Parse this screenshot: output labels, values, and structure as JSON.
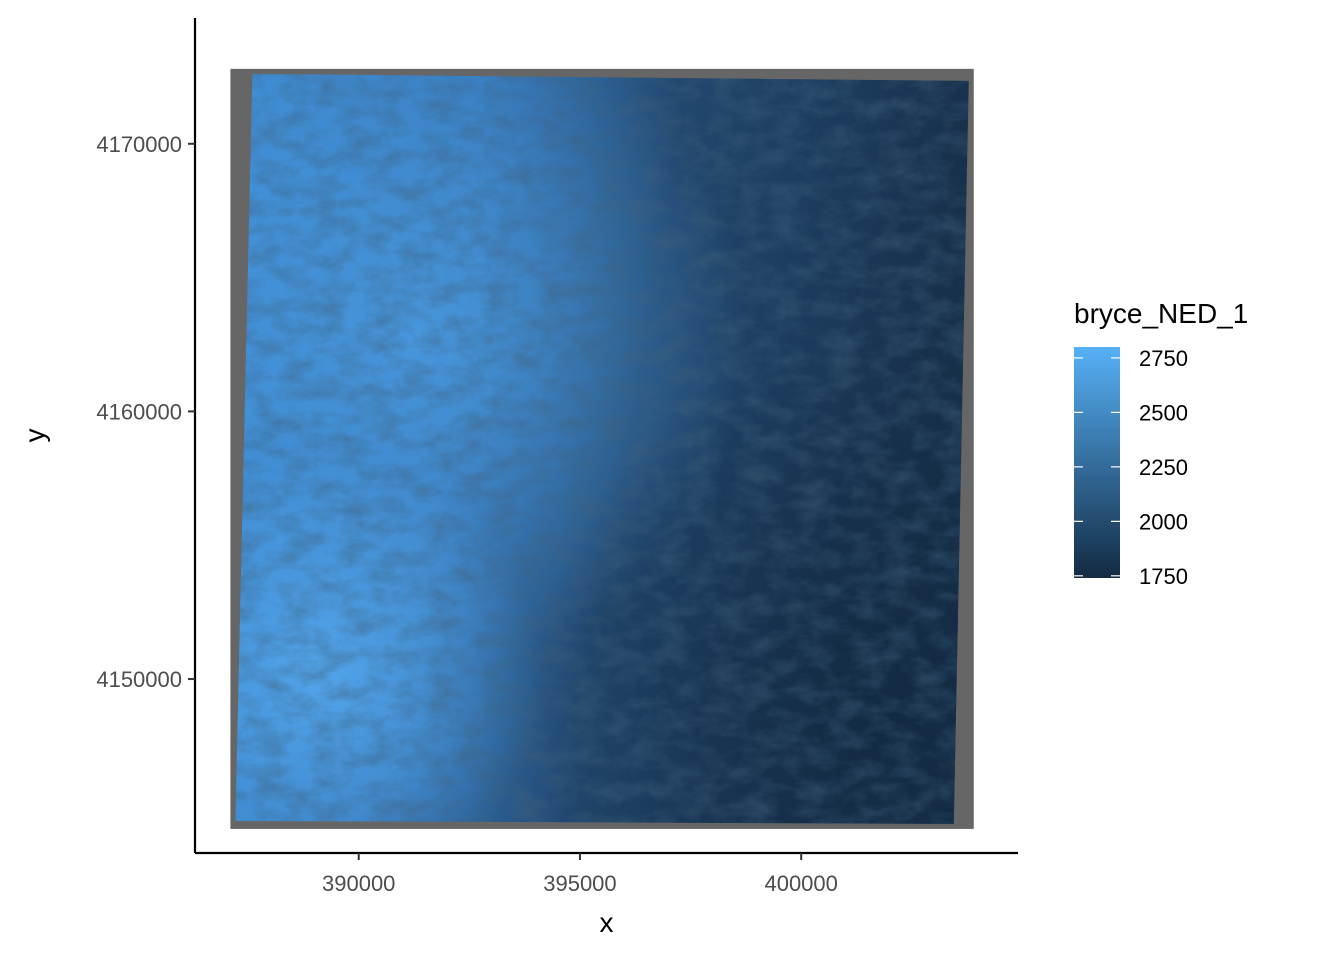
{
  "chart_data": {
    "type": "heatmap",
    "title": "",
    "xlabel": "x",
    "ylabel": "y",
    "xlim": [
      386300,
      404900
    ],
    "ylim": [
      4143500,
      4174700
    ],
    "x_ticks": [
      390000,
      395000,
      400000
    ],
    "x_tick_labels": [
      "390000",
      "395000",
      "400000"
    ],
    "y_ticks": [
      4150000,
      4160000,
      4170000
    ],
    "y_tick_labels": [
      "4150000",
      "4160000",
      "4170000"
    ],
    "raster_extent": {
      "xmin": 387100,
      "xmax": 403900,
      "ymin": 4144400,
      "ymax": 4172800
    },
    "na_color": "#666666",
    "grid": false,
    "legend": {
      "title": "bryce_NED_1",
      "position": "right",
      "breaks": [
        2750,
        2500,
        2250,
        2000,
        1750
      ],
      "break_labels": [
        "2750",
        "2500",
        "2250",
        "2000",
        "1750"
      ],
      "limits": [
        1740,
        2800
      ],
      "low_color": "#132B43",
      "high_color": "#56B1F7"
    }
  }
}
